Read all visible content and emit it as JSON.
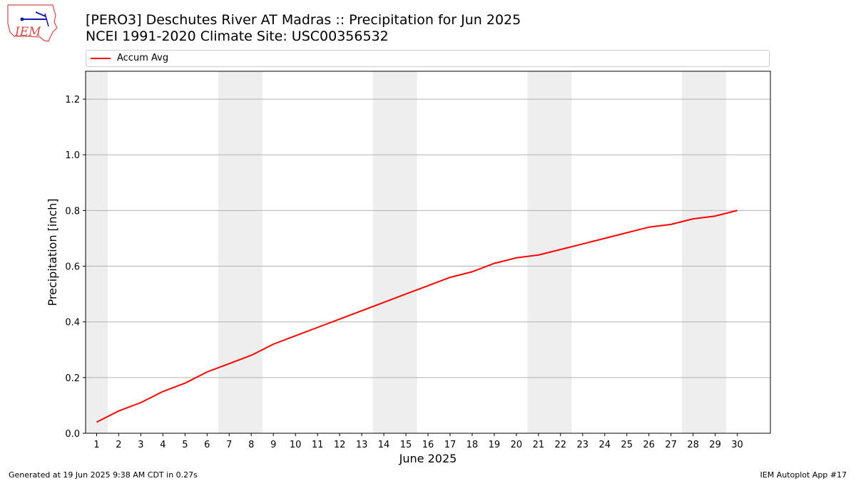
{
  "header": {
    "title_line1": "[PERO3] Deschutes River  AT Madras :: Precipitation for Jun 2025",
    "title_line2": "NCEI 1991-2020 Climate Site: USC00356532"
  },
  "logo": {
    "text": "IEM",
    "icon": "iem-logo-icon"
  },
  "footer": {
    "left": "Generated at 19 Jun 2025 9:38 AM CDT in 0.27s",
    "right": "IEM Autoplot App #17"
  },
  "chart_data": {
    "type": "line",
    "xlabel": "June 2025",
    "ylabel": "Precipitation [inch]",
    "xlim": [
      0.5,
      31.5
    ],
    "ylim": [
      0,
      1.3
    ],
    "yticks": [
      0.0,
      0.2,
      0.4,
      0.6,
      0.8,
      1.0,
      1.2
    ],
    "xticks": [
      1,
      2,
      3,
      4,
      5,
      6,
      7,
      8,
      9,
      10,
      11,
      12,
      13,
      14,
      15,
      16,
      17,
      18,
      19,
      20,
      21,
      22,
      23,
      24,
      25,
      26,
      27,
      28,
      29,
      30
    ],
    "grid": "y",
    "legend": "top",
    "weekend_shading": [
      [
        0.5,
        1.5
      ],
      [
        6.5,
        8.5
      ],
      [
        13.5,
        15.5
      ],
      [
        20.5,
        22.5
      ],
      [
        27.5,
        29.5
      ]
    ],
    "shading_color": "#eeeeee",
    "series": [
      {
        "name": "Accum Avg",
        "color": "#ff0000",
        "x": [
          1,
          2,
          3,
          4,
          5,
          6,
          7,
          8,
          9,
          10,
          11,
          12,
          13,
          14,
          15,
          16,
          17,
          18,
          19,
          20,
          21,
          22,
          23,
          24,
          25,
          26,
          27,
          28,
          29,
          30
        ],
        "values": [
          0.04,
          0.08,
          0.11,
          0.15,
          0.18,
          0.22,
          0.25,
          0.28,
          0.32,
          0.35,
          0.38,
          0.41,
          0.44,
          0.47,
          0.5,
          0.53,
          0.56,
          0.58,
          0.61,
          0.63,
          0.64,
          0.66,
          0.68,
          0.7,
          0.72,
          0.74,
          0.75,
          0.77,
          0.78,
          0.8
        ]
      }
    ]
  }
}
